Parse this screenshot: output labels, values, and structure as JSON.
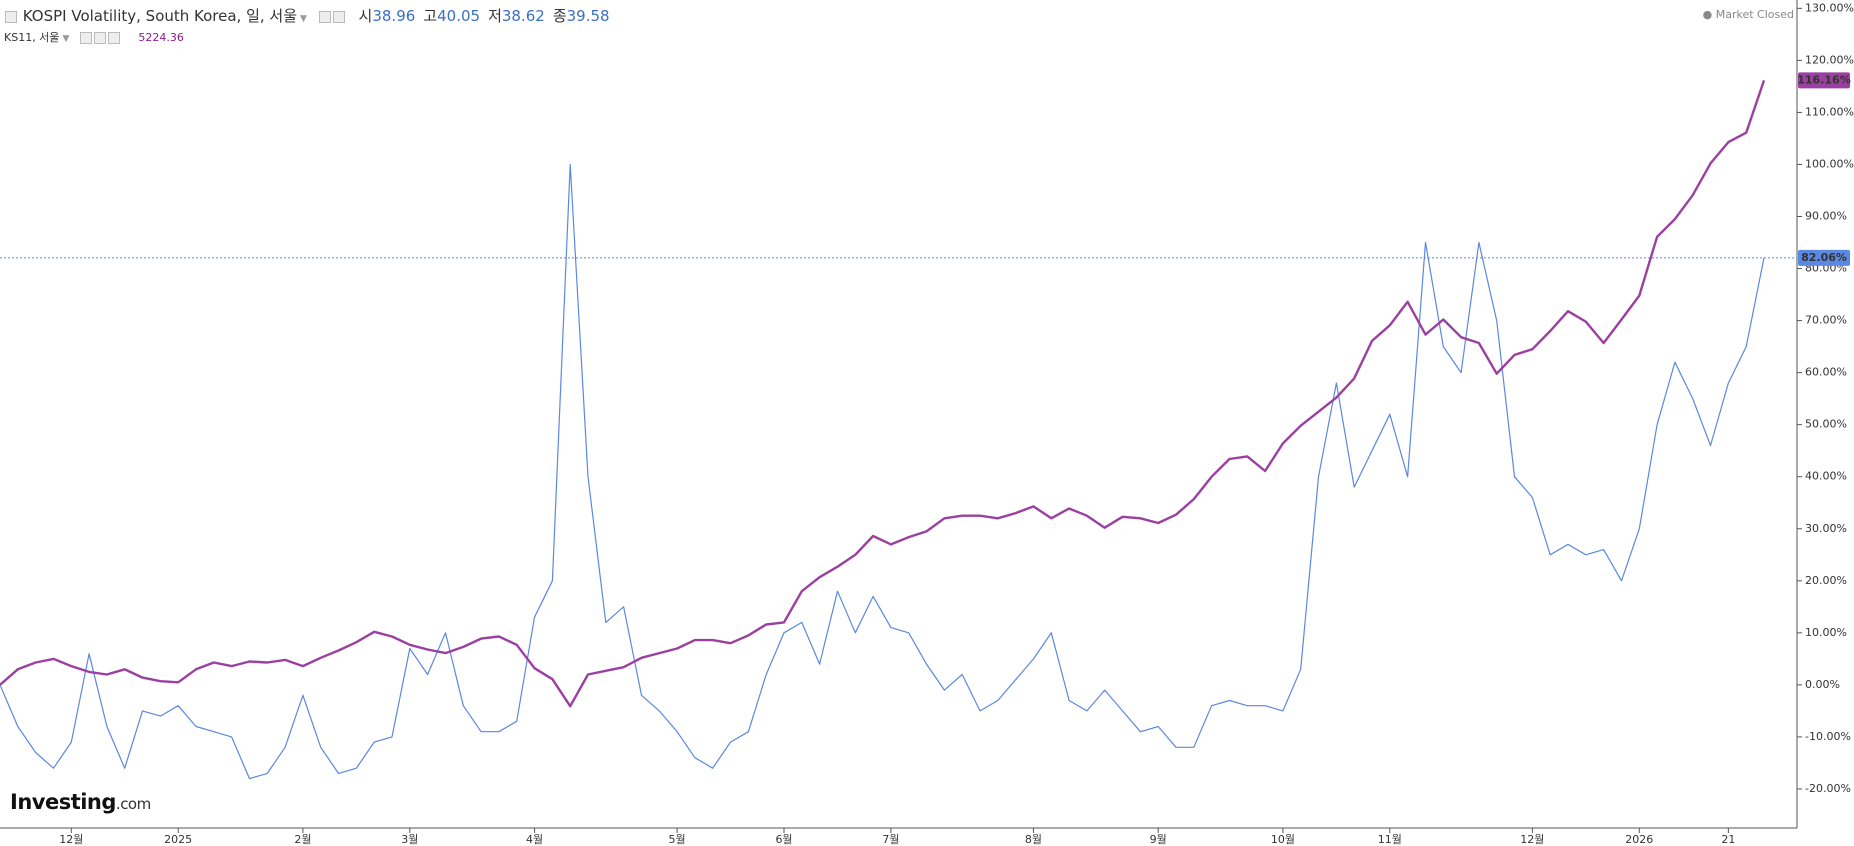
{
  "chart_data": {
    "type": "line",
    "series": [
      {
        "name": "KOSPI Volatility, South Korea, 일, 서울",
        "color": "#5b88e0",
        "width": 1.2,
        "last_label": "82.06%",
        "values": [
          0,
          -8,
          -13,
          -16,
          -11,
          6,
          -8,
          -16,
          -5,
          -6,
          -4,
          -8,
          -9,
          -10,
          -18,
          -17,
          -12,
          -2,
          -12,
          -17,
          -16,
          -11,
          -10,
          7,
          2,
          10,
          -4,
          -9,
          -9,
          -7,
          13,
          20,
          100,
          40,
          12,
          15,
          -2,
          -5,
          -9,
          -14,
          -16,
          -11,
          -9,
          2,
          10,
          12,
          4,
          18,
          10,
          17,
          11,
          10,
          4,
          -1,
          2,
          -5,
          -3,
          1,
          5,
          10,
          -3,
          -5,
          -1,
          -5,
          -9,
          -8,
          -12,
          -12,
          -4,
          -3,
          -4,
          -4,
          -5,
          3,
          40,
          58,
          38,
          45,
          52,
          40,
          85,
          65,
          60,
          85,
          70,
          40,
          36,
          25,
          27,
          25,
          26,
          20,
          30,
          50,
          62,
          55,
          46,
          58,
          65,
          82.06
        ]
      },
      {
        "name": "KS11, 서울",
        "color": "#9b3fa0",
        "width": 2.4,
        "last_label": "116.16%",
        "values": [
          0,
          3,
          4.3,
          5,
          3.6,
          2.5,
          2,
          3,
          1.4,
          0.7,
          0.5,
          3,
          4.3,
          3.6,
          4.5,
          4.3,
          4.8,
          3.6,
          5.2,
          6.6,
          8.2,
          10.2,
          9.3,
          7.7,
          6.8,
          6.1,
          7.3,
          8.9,
          9.3,
          7.7,
          3.2,
          1.1,
          -4.1,
          2,
          2.7,
          3.4,
          5.2,
          6.1,
          7,
          8.6,
          8.6,
          8,
          9.5,
          11.6,
          12,
          18,
          20.7,
          22.7,
          25,
          28.6,
          27,
          28.4,
          29.5,
          32,
          32.5,
          32.5,
          32,
          33,
          34.3,
          32,
          33.9,
          32.5,
          30.2,
          32.3,
          32,
          31.1,
          32.7,
          35.7,
          40,
          43.4,
          43.9,
          41.1,
          46.4,
          49.8,
          52.5,
          55.2,
          58.9,
          66.1,
          69.1,
          73.6,
          67.3,
          70.2,
          66.8,
          65.7,
          59.8,
          63.4,
          64.5,
          68,
          71.8,
          69.8,
          65.7,
          70.2,
          74.8,
          86.1,
          89.5,
          94.1,
          100.2,
          104.3,
          106.1,
          116.16
        ]
      }
    ],
    "categories": [
      null,
      null,
      null,
      null,
      "12월",
      null,
      null,
      null,
      null,
      null,
      "2025",
      null,
      null,
      null,
      null,
      null,
      null,
      "2월",
      null,
      null,
      null,
      null,
      null,
      "3월",
      null,
      null,
      null,
      null,
      null,
      null,
      "4월",
      null,
      null,
      null,
      null,
      null,
      null,
      null,
      "5월",
      null,
      null,
      null,
      null,
      null,
      "6월",
      null,
      null,
      null,
      null,
      null,
      "7월",
      null,
      null,
      null,
      null,
      null,
      null,
      null,
      "8월",
      null,
      null,
      null,
      null,
      null,
      null,
      "9월",
      null,
      null,
      null,
      null,
      null,
      null,
      "10월",
      null,
      null,
      null,
      null,
      null,
      "11월",
      null,
      null,
      null,
      null,
      null,
      null,
      null,
      "12월",
      null,
      null,
      null,
      null,
      null,
      "2026",
      null,
      null,
      null,
      null,
      "21",
      null,
      null
    ],
    "ylim": [
      -27.5,
      131.6
    ],
    "yticks": [
      {
        "value": -20,
        "label": "-20.00%"
      },
      {
        "value": -10,
        "label": "-10.00%"
      },
      {
        "value": 0,
        "label": "0.00%"
      },
      {
        "value": 10,
        "label": "10.00%"
      },
      {
        "value": 20,
        "label": "20.00%"
      },
      {
        "value": 30,
        "label": "30.00%"
      },
      {
        "value": 40,
        "label": "40.00%"
      },
      {
        "value": 50,
        "label": "50.00%"
      },
      {
        "value": 60,
        "label": "60.00%"
      },
      {
        "value": 70,
        "label": "70.00%"
      },
      {
        "value": 80,
        "label": "80.00%"
      },
      {
        "value": 90,
        "label": "90.00%"
      },
      {
        "value": 100,
        "label": "100.00%"
      },
      {
        "value": 110,
        "label": "110.00%"
      },
      {
        "value": 120,
        "label": "120.00%"
      },
      {
        "value": 130,
        "label": "130.00%"
      }
    ],
    "grid": false,
    "ohlc": [
      {
        "label": "시",
        "value": 38.96
      },
      {
        "label": "고",
        "value": 40.05
      },
      {
        "label": "저",
        "value": 38.62
      },
      {
        "label": "종",
        "value": 39.58
      }
    ],
    "second_value": 5224.36,
    "status": "Market Closed",
    "brand": "Investing",
    "brand_suffix": ".com"
  }
}
